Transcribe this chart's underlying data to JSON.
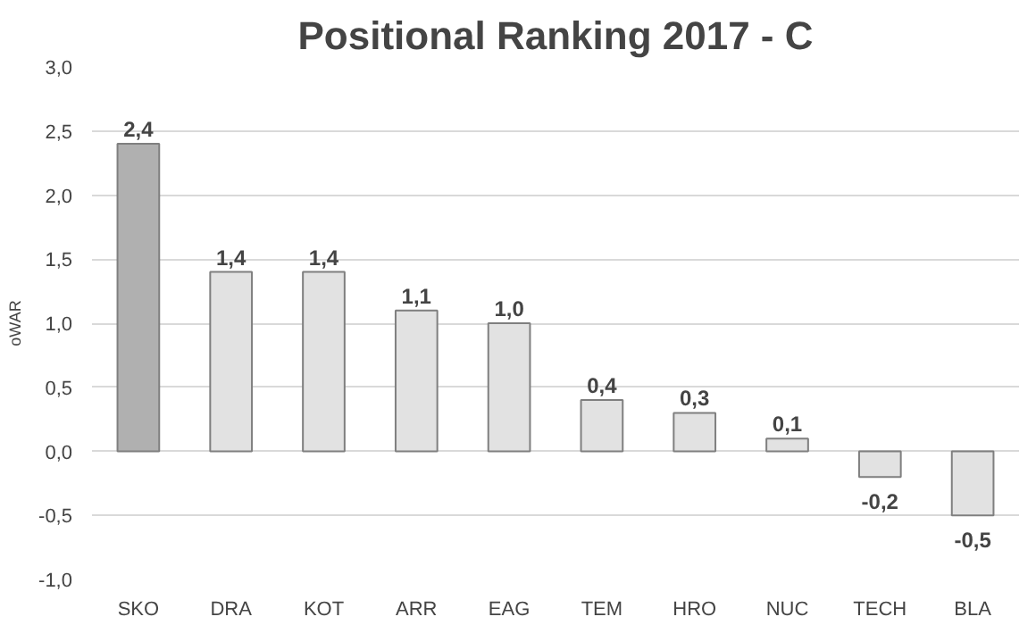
{
  "chart_data": {
    "type": "bar",
    "title": "Positional Ranking 2017 - C",
    "ylabel": "oWAR",
    "categories": [
      "SKO",
      "DRA",
      "KOT",
      "ARR",
      "EAG",
      "TEM",
      "HRO",
      "NUC",
      "TECH",
      "BLA"
    ],
    "values": [
      2.4,
      1.4,
      1.4,
      1.1,
      1.0,
      0.4,
      0.3,
      0.1,
      -0.2,
      -0.5
    ],
    "value_labels": [
      "2,4",
      "1,4",
      "1,4",
      "1,1",
      "1,0",
      "0,4",
      "0,3",
      "0,1",
      "-0,2",
      "-0,5"
    ],
    "colors": [
      "#b0b0b0",
      "#e2e2e2",
      "#e2e2e2",
      "#e2e2e2",
      "#e2e2e2",
      "#e2e2e2",
      "#e2e2e2",
      "#e2e2e2",
      "#e2e2e2",
      "#e2e2e2"
    ],
    "ylim": [
      -1.0,
      3.0
    ],
    "yticks": [
      {
        "value": -1.0,
        "label": "-1,0"
      },
      {
        "value": -0.5,
        "label": "-0,5"
      },
      {
        "value": 0,
        "label": "0,0"
      },
      {
        "value": 0.5,
        "label": "0,5"
      },
      {
        "value": 1.0,
        "label": "1,0"
      },
      {
        "value": 1.5,
        "label": "1,5"
      },
      {
        "value": 2.0,
        "label": "2,0"
      },
      {
        "value": 2.5,
        "label": "2,5"
      },
      {
        "value": 3.0,
        "label": "3,0"
      }
    ],
    "grid": "y"
  }
}
